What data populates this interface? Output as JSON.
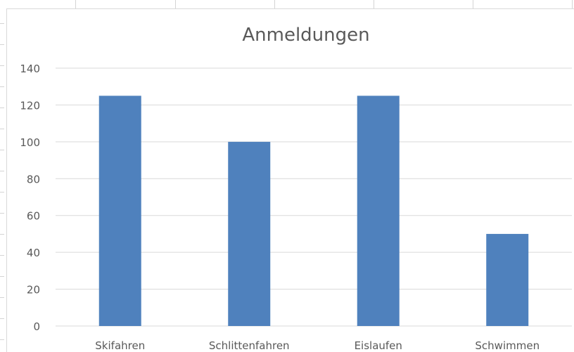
{
  "chart_data": {
    "type": "bar",
    "title": "Anmeldungen",
    "categories": [
      "Skifahren",
      "Schlittenfahren",
      "Eislaufen",
      "Schwimmen"
    ],
    "values": [
      125,
      100,
      125,
      50
    ],
    "ylim": [
      0,
      140
    ],
    "yticks": [
      0,
      20,
      40,
      60,
      80,
      100,
      120,
      140
    ],
    "xlabel": "",
    "ylabel": "",
    "grid": true,
    "legend": "none",
    "bar_color": "#4f81bd",
    "grid_color": "#d9d9d9",
    "text_color": "#595959"
  }
}
